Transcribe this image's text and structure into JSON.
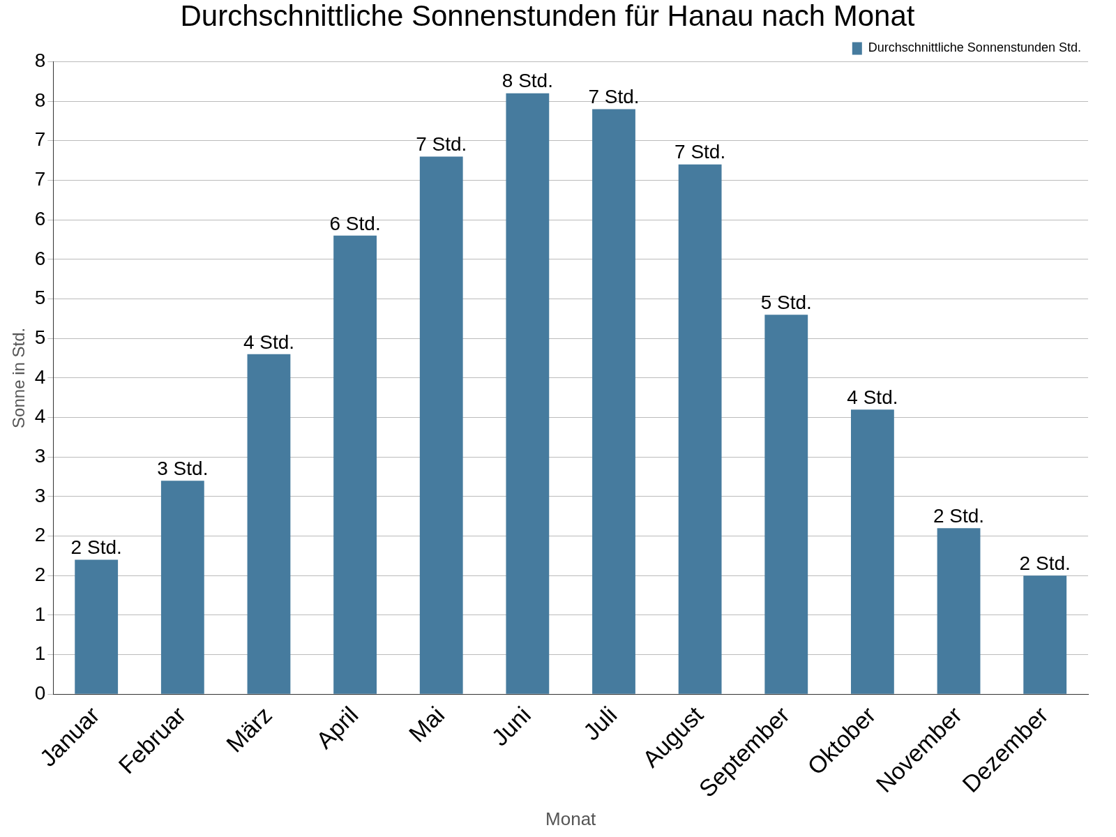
{
  "chart_data": {
    "type": "bar",
    "title": "Durchschnittliche Sonnenstunden für Hanau nach Monat",
    "xlabel": "Monat",
    "ylabel": "Sonne in Std.",
    "categories": [
      "Januar",
      "Februar",
      "März",
      "April",
      "Mai",
      "Juni",
      "Juli",
      "August",
      "September",
      "Oktober",
      "November",
      "Dezember"
    ],
    "series": [
      {
        "name": "Durchschnittliche Sonnenstunden Std.",
        "color": "#467b9e",
        "values": [
          1.7,
          2.7,
          4.3,
          5.8,
          6.8,
          7.6,
          7.4,
          6.7,
          4.8,
          3.6,
          2.1,
          1.5
        ],
        "value_labels": [
          "2 Std.",
          "3 Std.",
          "4 Std.",
          "6 Std.",
          "7 Std.",
          "8 Std.",
          "7 Std.",
          "7 Std.",
          "5 Std.",
          "4 Std.",
          "2 Std.",
          "2 Std."
        ]
      }
    ],
    "ylim": [
      0,
      8
    ],
    "yticks": [
      0,
      {
        "value": 0.5,
        "label": "1"
      },
      1,
      {
        "value": 1.5,
        "label": "2"
      },
      2,
      {
        "value": 2.5,
        "label": "3"
      },
      3,
      {
        "value": 3.5,
        "label": "4"
      },
      4,
      {
        "value": 4.5,
        "label": "5"
      },
      5,
      {
        "value": 5.5,
        "label": "6"
      },
      6,
      {
        "value": 6.5,
        "label": "7"
      },
      7,
      {
        "value": 7.5,
        "label": "8"
      },
      8
    ],
    "grid": "y",
    "legend": "top right"
  }
}
